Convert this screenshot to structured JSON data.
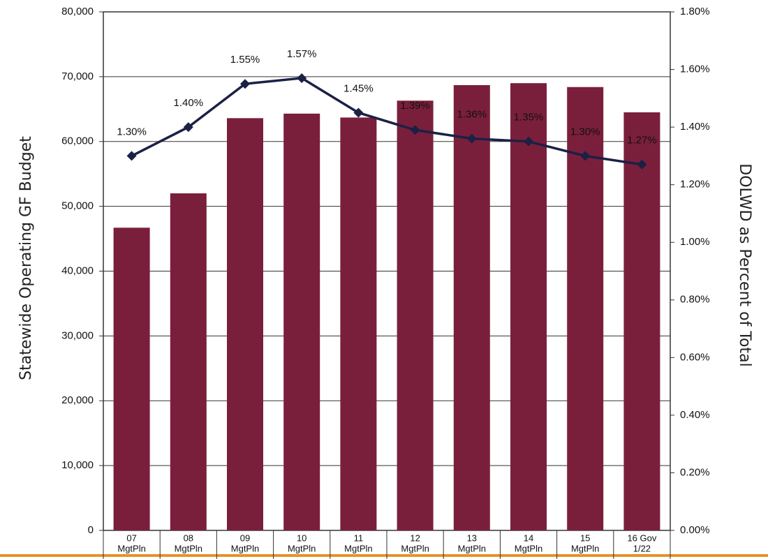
{
  "chart_data": {
    "type": "bar_line",
    "categories": [
      [
        "07",
        "MgtPln"
      ],
      [
        "08",
        "MgtPln"
      ],
      [
        "09",
        "MgtPln"
      ],
      [
        "10",
        "MgtPln"
      ],
      [
        "11",
        "MgtPln"
      ],
      [
        "12",
        "MgtPln"
      ],
      [
        "13",
        "MgtPln"
      ],
      [
        "14",
        "MgtPln"
      ],
      [
        "15",
        "MgtPln"
      ],
      [
        "16 Gov",
        "1/22"
      ]
    ],
    "y_label": "Statewide Operating GF Budget",
    "y2_label": "DOLWD as Percent of Total",
    "series": [
      {
        "name": "Statewide Operating GF Budget",
        "color": "#7a1f3b",
        "type": "bar",
        "values": [
          46700,
          52000,
          63600,
          64300,
          63700,
          66300,
          68700,
          69000,
          68400,
          64500
        ]
      },
      {
        "name": "DOLWD as Percent of Total",
        "color": "#1b2145",
        "type": "line",
        "axis": "y2",
        "values": [
          1.3,
          1.4,
          1.55,
          1.57,
          1.45,
          1.39,
          1.36,
          1.35,
          1.3,
          1.27
        ],
        "value_labels": [
          "1.30%",
          "1.40%",
          "1.55%",
          "1.57%",
          "1.45%",
          "1.39%",
          "1.36%",
          "1.35%",
          "1.30%",
          "1.27%"
        ]
      }
    ],
    "ylim": [
      0,
      80000
    ],
    "yticks": [
      0,
      {
        "value": 10000,
        "label": "10,000"
      },
      {
        "value": 20000,
        "label": "20,000"
      },
      {
        "value": 30000,
        "label": "30,000"
      },
      {
        "value": 40000,
        "label": "40,000"
      },
      {
        "value": 50000,
        "label": "50,000"
      },
      {
        "value": 60000,
        "label": "60,000"
      },
      {
        "value": 70000,
        "label": "70,000"
      },
      {
        "value": 80000,
        "label": "80,000"
      }
    ],
    "y2lim": [
      0,
      1.8
    ],
    "y2ticks": [
      {
        "value": 0,
        "label": "0.00%"
      },
      {
        "value": 0.2,
        "label": "0.20%"
      },
      {
        "value": 0.4,
        "label": "0.40%"
      },
      {
        "value": 0.6,
        "label": "0.60%"
      },
      {
        "value": 0.8,
        "label": "0.80%"
      },
      {
        "value": 1.0,
        "label": "1.00%"
      },
      {
        "value": 1.2,
        "label": "1.20%"
      },
      {
        "value": 1.4,
        "label": "1.40%"
      },
      {
        "value": 1.6,
        "label": "1.60%"
      },
      {
        "value": 1.8,
        "label": "1.80%"
      }
    ],
    "grid": true
  }
}
